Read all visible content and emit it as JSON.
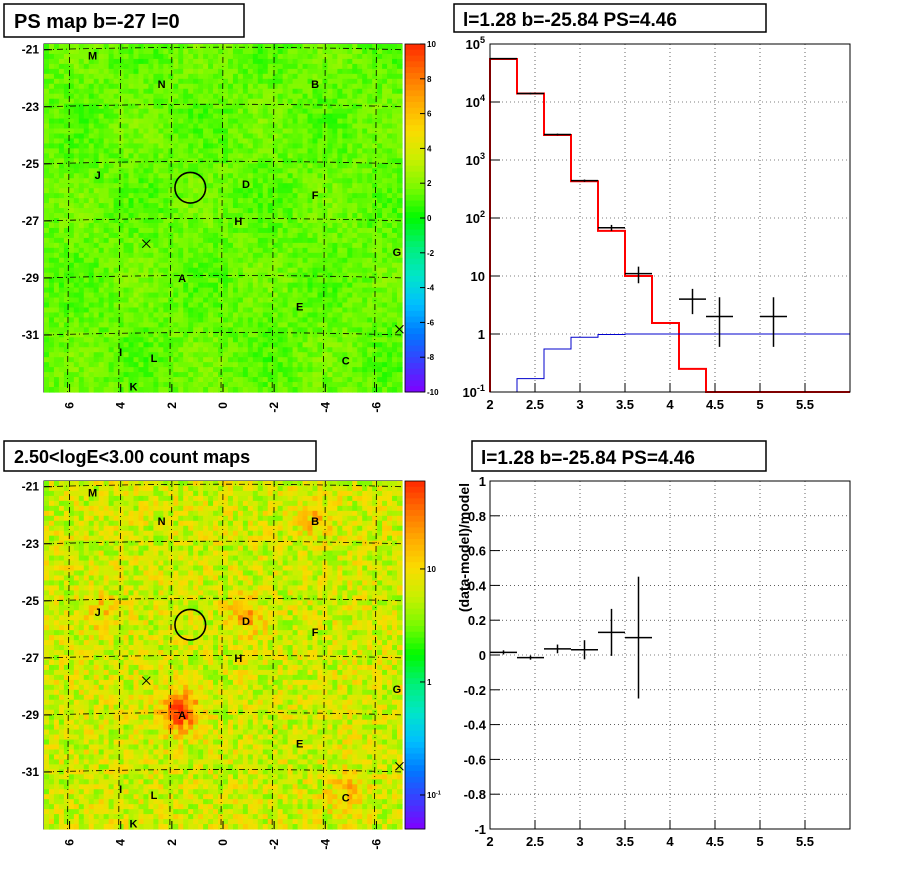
{
  "panels": {
    "tl_title": "PS map b=-27 l=0",
    "tr_title": "l=1.28 b=-25.84 PS=4.46",
    "bl_title": "2.50<logE<3.00 count maps",
    "br_title": "l=1.28 b=-25.84 PS=4.46"
  },
  "colors": {
    "spectrum_model": "#ff0000",
    "background_model": "#0000cc",
    "data_points": "#000000"
  },
  "chart_data": [
    {
      "type": "heatmap",
      "title": "PS map b=-27 l=0",
      "x_ticks": [
        "6",
        "4",
        "2",
        "0",
        "-2",
        "-4",
        "-6"
      ],
      "y_ticks": [
        "-21",
        "-23",
        "-25",
        "-27",
        "-29",
        "-31"
      ],
      "xlim": [
        7,
        -7
      ],
      "ylim": [
        -33,
        -20.8
      ],
      "colorbar": {
        "scale": "linear",
        "range": [
          -10,
          10
        ],
        "ticks": [
          "10",
          "8",
          "6",
          "4",
          "2",
          "0",
          "-2",
          "-4",
          "-6",
          "-8",
          "-10"
        ]
      },
      "source_labels": [
        {
          "text": "M",
          "l": 5.1,
          "b": -21.2
        },
        {
          "text": "N",
          "l": 2.4,
          "b": -22.2
        },
        {
          "text": "B",
          "l": -3.6,
          "b": -22.2
        },
        {
          "text": "J",
          "l": 4.9,
          "b": -25.4
        },
        {
          "text": "D",
          "l": -0.9,
          "b": -25.7
        },
        {
          "text": "F",
          "l": -3.6,
          "b": -26.1
        },
        {
          "text": "H",
          "l": -0.6,
          "b": -27.0
        },
        {
          "text": "G",
          "l": -6.8,
          "b": -28.1
        },
        {
          "text": "A",
          "l": 1.6,
          "b": -29.0
        },
        {
          "text": "E",
          "l": -3.0,
          "b": -30.0
        },
        {
          "text": "I",
          "l": 4.0,
          "b": -31.6
        },
        {
          "text": "L",
          "l": 2.7,
          "b": -31.8
        },
        {
          "text": "C",
          "l": -4.8,
          "b": -31.9
        },
        {
          "text": "K",
          "l": 3.5,
          "b": -32.8
        }
      ],
      "circle": {
        "l": 1.28,
        "b": -25.84,
        "r": 0.6
      },
      "crosses": [
        {
          "l": 3.0,
          "b": -27.8
        },
        {
          "l": -6.9,
          "b": -30.8
        }
      ]
    },
    {
      "type": "line",
      "title": "l=1.28 b=-25.84 PS=4.46",
      "xlabel": "",
      "ylabel": "",
      "xlim": [
        2,
        6
      ],
      "ylim": [
        0.1,
        100000
      ],
      "y_scale": "log",
      "grid": true,
      "x_ticks": [
        "2",
        "2.5",
        "3",
        "3.5",
        "4",
        "4.5",
        "5",
        "5.5"
      ],
      "y_ticks": [
        "10^5",
        "10^4",
        "10^3",
        "10^2",
        "10",
        "1",
        "10^-1"
      ],
      "series": [
        {
          "style": "step",
          "color": "#ff0000",
          "edges": [
            2.0,
            2.3,
            2.6,
            2.9,
            3.2,
            3.5,
            3.8,
            4.1,
            4.4,
            4.7,
            6.0
          ],
          "values": [
            55000,
            14000,
            2700,
            430,
            60,
            10,
            1.55,
            0.25,
            0.1,
            0.1
          ]
        },
        {
          "style": "step",
          "color": "#0000cc",
          "edges": [
            2.0,
            2.3,
            2.6,
            2.9,
            3.2,
            3.5,
            3.8,
            4.1,
            4.4,
            4.7,
            6.0
          ],
          "values": [
            0.1,
            0.17,
            0.55,
            0.88,
            0.98,
            1.0,
            1.0,
            1.0,
            1.0,
            1.0
          ]
        },
        {
          "style": "errorbar",
          "color": "#000000",
          "points": [
            {
              "x": 2.15,
              "y": 56000,
              "xerr": 0.15,
              "ylo": 55000,
              "yhi": 57000
            },
            {
              "x": 2.45,
              "y": 14000,
              "xerr": 0.15,
              "ylo": 13500,
              "yhi": 14500
            },
            {
              "x": 2.75,
              "y": 2750,
              "xerr": 0.15,
              "ylo": 2650,
              "yhi": 2850
            },
            {
              "x": 3.05,
              "y": 440,
              "xerr": 0.15,
              "ylo": 420,
              "yhi": 460
            },
            {
              "x": 3.35,
              "y": 68,
              "xerr": 0.15,
              "ylo": 60,
              "yhi": 76
            },
            {
              "x": 3.65,
              "y": 11,
              "xerr": 0.15,
              "ylo": 7.5,
              "yhi": 14.5
            },
            {
              "x": 4.25,
              "y": 4,
              "xerr": 0.15,
              "ylo": 2.2,
              "yhi": 6
            },
            {
              "x": 4.55,
              "y": 2,
              "xerr": 0.15,
              "ylo": 0.6,
              "yhi": 4.3
            },
            {
              "x": 5.15,
              "y": 2,
              "xerr": 0.15,
              "ylo": 0.6,
              "yhi": 4.3
            }
          ]
        }
      ]
    },
    {
      "type": "heatmap",
      "title": "2.50<logE<3.00 count maps",
      "x_ticks": [
        "6",
        "4",
        "2",
        "0",
        "-2",
        "-4",
        "-6"
      ],
      "y_ticks": [
        "-21",
        "-23",
        "-25",
        "-27",
        "-29",
        "-31"
      ],
      "xlim": [
        7,
        -7
      ],
      "ylim": [
        -33,
        -20.8
      ],
      "colorbar": {
        "scale": "log",
        "range": [
          0.05,
          60
        ],
        "ticks": [
          "10",
          "1",
          "10^-1"
        ]
      },
      "hotspots": [
        {
          "l": 1.7,
          "b": -28.9,
          "strength": 1.0
        },
        {
          "l": -0.9,
          "b": -25.6,
          "strength": 0.45
        },
        {
          "l": -3.6,
          "b": -22.1,
          "strength": 0.35
        },
        {
          "l": -4.8,
          "b": -31.8,
          "strength": 0.4
        },
        {
          "l": 4.9,
          "b": -25.3,
          "strength": 0.3
        }
      ],
      "source_labels": [
        {
          "text": "M",
          "l": 5.1,
          "b": -21.2
        },
        {
          "text": "N",
          "l": 2.4,
          "b": -22.2
        },
        {
          "text": "B",
          "l": -3.6,
          "b": -22.2
        },
        {
          "text": "J",
          "l": 4.9,
          "b": -25.4
        },
        {
          "text": "D",
          "l": -0.9,
          "b": -25.7
        },
        {
          "text": "F",
          "l": -3.6,
          "b": -26.1
        },
        {
          "text": "H",
          "l": -0.6,
          "b": -27.0
        },
        {
          "text": "G",
          "l": -6.8,
          "b": -28.1
        },
        {
          "text": "A",
          "l": 1.6,
          "b": -29.0
        },
        {
          "text": "E",
          "l": -3.0,
          "b": -30.0
        },
        {
          "text": "I",
          "l": 4.0,
          "b": -31.6
        },
        {
          "text": "L",
          "l": 2.7,
          "b": -31.8
        },
        {
          "text": "C",
          "l": -4.8,
          "b": -31.9
        },
        {
          "text": "K",
          "l": 3.5,
          "b": -32.8
        }
      ],
      "circle": {
        "l": 1.28,
        "b": -25.84,
        "r": 0.6
      },
      "crosses": [
        {
          "l": 3.0,
          "b": -27.8
        },
        {
          "l": -6.9,
          "b": -30.8
        }
      ]
    },
    {
      "type": "scatter",
      "title": "l=1.28 b=-25.84 PS=4.46",
      "xlabel": "",
      "ylabel": "(data-model)/model",
      "xlim": [
        2,
        6
      ],
      "ylim": [
        -1,
        1
      ],
      "grid": true,
      "x_ticks": [
        "2",
        "2.5",
        "3",
        "3.5",
        "4",
        "4.5",
        "5",
        "5.5"
      ],
      "y_ticks": [
        "1",
        "0.8",
        "0.6",
        "0.4",
        "0.2",
        "0",
        "-0.2",
        "-0.4",
        "-0.6",
        "-0.8",
        "-1"
      ],
      "points": [
        {
          "x": 2.15,
          "y": 0.015,
          "xerr": 0.15,
          "yerr": 0.012
        },
        {
          "x": 2.45,
          "y": -0.015,
          "xerr": 0.15,
          "yerr": 0.012
        },
        {
          "x": 2.75,
          "y": 0.035,
          "xerr": 0.15,
          "yerr": 0.025
        },
        {
          "x": 3.05,
          "y": 0.03,
          "xerr": 0.15,
          "yerr": 0.055
        },
        {
          "x": 3.35,
          "y": 0.13,
          "xerr": 0.15,
          "yerr": 0.135
        },
        {
          "x": 3.65,
          "y": 0.1,
          "xerr": 0.15,
          "yerr": 0.35
        }
      ]
    }
  ]
}
